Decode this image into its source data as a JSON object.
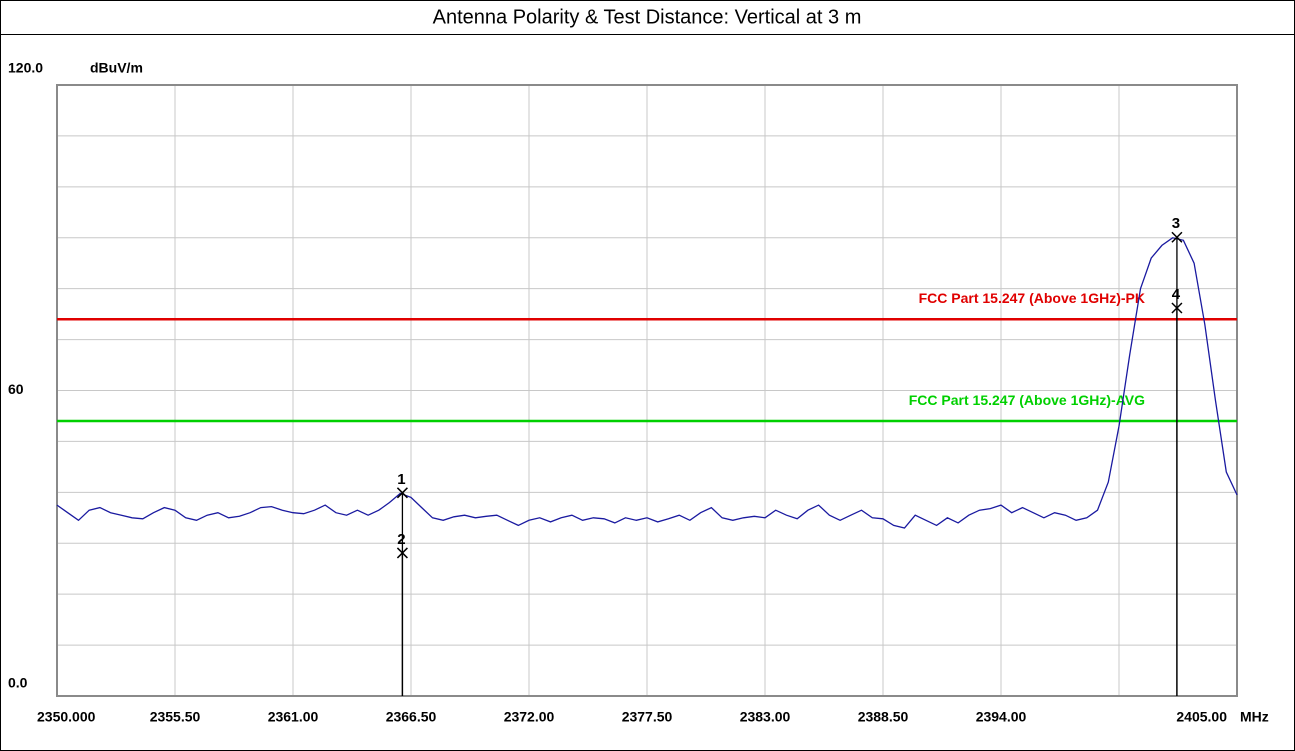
{
  "chart_data": {
    "type": "line",
    "title": "Antenna Polarity & Test Distance: Vertical at 3 m",
    "y_unit": "dBuV/m",
    "x_unit": "MHz",
    "xlim": [
      2350,
      2405
    ],
    "ylim": [
      0,
      120
    ],
    "xticks": [
      {
        "value": 2350,
        "label": "2350.000"
      },
      {
        "value": 2355.5,
        "label": "2355.50"
      },
      {
        "value": 2361,
        "label": "2361.00"
      },
      {
        "value": 2366.5,
        "label": "2366.50"
      },
      {
        "value": 2372,
        "label": "2372.00"
      },
      {
        "value": 2377.5,
        "label": "2377.50"
      },
      {
        "value": 2383,
        "label": "2383.00"
      },
      {
        "value": 2388.5,
        "label": "2388.50"
      },
      {
        "value": 2394,
        "label": "2394.00"
      },
      {
        "value": 2405,
        "label": "2405.00"
      }
    ],
    "yticks": [
      {
        "value": 0,
        "label": "0.0"
      },
      60,
      {
        "value": 120,
        "label": "120.0"
      }
    ],
    "xgrid": [
      2350,
      2355.5,
      2361,
      2366.5,
      2372,
      2377.5,
      2383,
      2388.5,
      2394,
      2399.5,
      2405
    ],
    "ygrid": [
      0,
      10,
      20,
      30,
      40,
      50,
      60,
      70,
      80,
      90,
      100,
      110,
      120
    ],
    "limits": [
      {
        "name": "FCC Part 15.247 (Above 1GHz)-PK",
        "color": "#e00000",
        "value": 74
      },
      {
        "name": "FCC Part 15.247 (Above 1GHz)-AVG",
        "color": "#00d000",
        "value": 54
      }
    ],
    "markers": [
      {
        "label": "1",
        "x": 2366.1,
        "y": 39.9
      },
      {
        "label": "2",
        "x": 2366.1,
        "y": 28.1
      },
      {
        "label": "3",
        "x": 2402.2,
        "y": 90.1
      },
      {
        "label": "4",
        "x": 2402.2,
        "y": 76.2
      }
    ],
    "x": [
      2350,
      2350.5,
      2351,
      2351.5,
      2352,
      2352.5,
      2353,
      2353.5,
      2354,
      2354.5,
      2355,
      2355.5,
      2356,
      2356.5,
      2357,
      2357.5,
      2358,
      2358.5,
      2359,
      2359.5,
      2360,
      2360.5,
      2361,
      2361.5,
      2362,
      2362.5,
      2363,
      2363.5,
      2364,
      2364.5,
      2365,
      2365.5,
      2366,
      2366.5,
      2367,
      2367.5,
      2368,
      2368.5,
      2369,
      2369.5,
      2370,
      2370.5,
      2371,
      2371.5,
      2372,
      2372.5,
      2373,
      2373.5,
      2374,
      2374.5,
      2375,
      2375.5,
      2376,
      2376.5,
      2377,
      2377.5,
      2378,
      2378.5,
      2379,
      2379.5,
      2380,
      2380.5,
      2381,
      2381.5,
      2382,
      2382.5,
      2383,
      2383.5,
      2384,
      2384.5,
      2385,
      2385.5,
      2386,
      2386.5,
      2387,
      2387.5,
      2388,
      2388.5,
      2389,
      2389.5,
      2390,
      2390.5,
      2391,
      2391.5,
      2392,
      2392.5,
      2393,
      2393.5,
      2394,
      2394.5,
      2395,
      2395.5,
      2396,
      2396.5,
      2397,
      2397.5,
      2398,
      2398.5,
      2399,
      2399.5,
      2400,
      2400.5,
      2401,
      2401.5,
      2402,
      2402.5,
      2403,
      2403.5,
      2404,
      2404.5,
      2405
    ],
    "series": [
      {
        "name": "trace",
        "color": "#1a1aa0",
        "values": [
          37.5,
          36,
          34.5,
          36.5,
          37,
          36,
          35.5,
          35,
          34.8,
          36,
          37,
          36.5,
          35,
          34.5,
          35.5,
          36,
          35,
          35.3,
          36,
          37,
          37.2,
          36.5,
          36,
          35.8,
          36.5,
          37.5,
          36,
          35.5,
          36.5,
          35.5,
          36.5,
          38,
          39.8,
          39,
          37,
          35,
          34.5,
          35.2,
          35.5,
          35,
          35.3,
          35.5,
          34.5,
          33.5,
          34.5,
          35,
          34.2,
          35,
          35.5,
          34.5,
          35,
          34.8,
          34,
          35,
          34.5,
          35,
          34.2,
          34.8,
          35.5,
          34.5,
          36,
          37,
          35,
          34.5,
          35,
          35.3,
          35,
          36.5,
          35.5,
          34.8,
          36.5,
          37.5,
          35.5,
          34.5,
          35.5,
          36.5,
          35,
          34.8,
          33.5,
          33,
          35.5,
          34.5,
          33.5,
          35,
          34,
          35.5,
          36.5,
          36.8,
          37.5,
          36,
          37,
          36,
          35,
          36,
          35.5,
          34.5,
          35,
          36.5,
          42,
          53,
          67,
          80,
          86,
          88.5,
          90,
          89.5,
          85,
          73,
          58,
          44,
          39.5
        ]
      }
    ]
  }
}
